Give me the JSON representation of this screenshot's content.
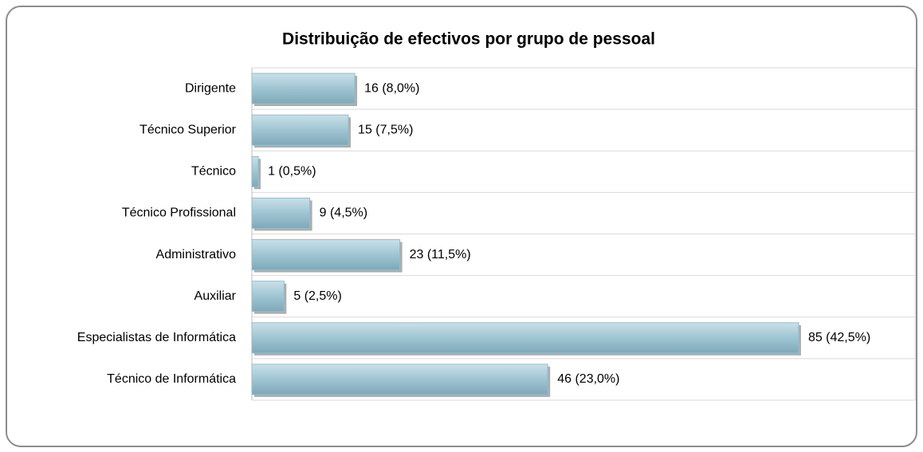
{
  "chart_data": {
    "type": "bar",
    "orientation": "horizontal",
    "title": "Distribuição de efectivos por grupo de pessoal",
    "categories": [
      "Dirigente",
      "Técnico Superior",
      "Técnico",
      "Técnico Profissional",
      "Administrativo",
      "Auxiliar",
      "Especialistas de Informática",
      "Técnico de Informática"
    ],
    "values": [
      16,
      15,
      1,
      9,
      23,
      5,
      85,
      46
    ],
    "value_labels": [
      "16 (8,0%)",
      "15 (7,5%)",
      "1 (0,5%)",
      "9 (4,5%)",
      "23 (11,5%)",
      "5 (2,5%)",
      "85 (42,5%)",
      "46 (23,0%)"
    ],
    "color": "#93bccc",
    "xlim": [
      0,
      100
    ]
  }
}
